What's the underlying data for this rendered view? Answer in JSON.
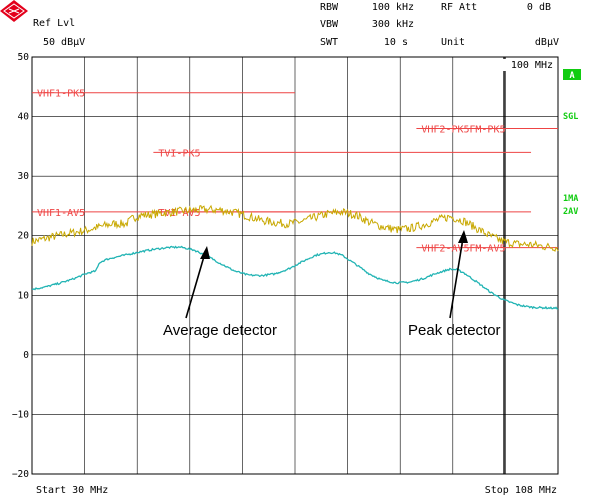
{
  "header": {
    "ref_label": "Ref Lvl",
    "ref_value": "50 dBµV",
    "rbw_label": "RBW",
    "rbw_value": "100 kHz",
    "vbw_label": "VBW",
    "vbw_value": "300 kHz",
    "swt_label": "SWT",
    "swt_value": "10 s",
    "att_label": "RF Att",
    "att_value": "0 dB",
    "unit_label": "Unit",
    "unit_value": "dBµV"
  },
  "markers": {
    "marker_freq": "100 MHz",
    "trace_a_badge": "A",
    "sgl_label": "SGL",
    "trace1_label": "1MA",
    "trace2_label": "2AV"
  },
  "footer": {
    "start_label": "Start 30 MHz",
    "stop_label": "Stop 108 MHz"
  },
  "annotations": {
    "average_label": "Average detector",
    "peak_label": "Peak detector"
  },
  "colors": {
    "logo_red": "#e3001b",
    "limit_line": "#ee4444",
    "peak_trace": "#c8a800",
    "average_trace": "#22b4b4",
    "side_label": "#11cc11",
    "grid": "#000000"
  },
  "chart_data": {
    "type": "line",
    "x_unit": "MHz",
    "y_unit": "dBµV",
    "xlim": [
      30,
      108
    ],
    "ylim": [
      -20,
      50
    ],
    "y_ticks": [
      50,
      40,
      30,
      20,
      10,
      0,
      -10,
      -20
    ],
    "x_gridlines": [
      37.8,
      45.6,
      53.4,
      61.2,
      69,
      76.8,
      84.6,
      92.4,
      100.2
    ],
    "marker_line_x": 100,
    "grid": true,
    "limit_lines": [
      {
        "name": "VHF1-PK5",
        "y": 44,
        "x": [
          30,
          69
        ]
      },
      {
        "name": "TVI-PK5",
        "y": 34,
        "x": [
          48,
          104
        ]
      },
      {
        "name": "VHF2-PK5",
        "y": 38,
        "x": [
          87,
          108
        ]
      },
      {
        "name": "FM-PK5",
        "y": 38,
        "x": [
          87,
          108
        ]
      },
      {
        "name": "VHF1-AV5",
        "y": 24,
        "x": [
          30,
          69
        ]
      },
      {
        "name": "TVI-AV5",
        "y": 24,
        "x": [
          48,
          104
        ]
      },
      {
        "name": "VHF2-AV5",
        "y": 18,
        "x": [
          87,
          108
        ]
      },
      {
        "name": "FM-AV5",
        "y": 18,
        "x": [
          87,
          108
        ]
      }
    ],
    "series": [
      {
        "name": "Peak detector",
        "noise": 0.7,
        "x": [
          30,
          33,
          36,
          38,
          40,
          42,
          44,
          45,
          46,
          48,
          50,
          52,
          54,
          56,
          58,
          60,
          62,
          64,
          66,
          68,
          70,
          72,
          74,
          76,
          78,
          80,
          82,
          84,
          86,
          88,
          90,
          92,
          94,
          96,
          98,
          100,
          102,
          104,
          106,
          108
        ],
        "values": [
          19.0,
          19.8,
          20.5,
          20.9,
          21.5,
          22.0,
          22.0,
          23.0,
          23.4,
          23.6,
          23.9,
          24.1,
          24.3,
          24.4,
          24.3,
          23.9,
          23.3,
          22.6,
          22.2,
          22.0,
          22.4,
          23.1,
          23.7,
          24.0,
          23.5,
          22.3,
          21.5,
          21.0,
          21.2,
          21.8,
          22.6,
          23.2,
          22.5,
          21.2,
          19.9,
          19.0,
          18.6,
          18.5,
          18.2,
          18.0
        ]
      },
      {
        "name": "Average detector",
        "noise": 0.15,
        "x": [
          30,
          32,
          34,
          36,
          38,
          38.5,
          38.9,
          39.5,
          40,
          41,
          42,
          44,
          46,
          48,
          50,
          52,
          54,
          56,
          58,
          60,
          62,
          64,
          66,
          68,
          70,
          72,
          74,
          75,
          76,
          78,
          80,
          82,
          84,
          86,
          88,
          90,
          92,
          93,
          94,
          96,
          98,
          100,
          102,
          104,
          106,
          108
        ],
        "values": [
          11.0,
          11.4,
          12.0,
          12.7,
          13.6,
          13.8,
          13.9,
          14.1,
          15.5,
          16.0,
          16.3,
          16.8,
          17.3,
          17.7,
          18.0,
          18.1,
          17.6,
          16.6,
          15.3,
          14.1,
          13.4,
          13.3,
          13.6,
          14.4,
          15.6,
          16.7,
          17.2,
          17.1,
          16.7,
          15.2,
          13.6,
          12.5,
          12.1,
          12.2,
          12.8,
          13.7,
          14.4,
          14.3,
          13.8,
          12.2,
          10.5,
          9.2,
          8.4,
          8.0,
          7.9,
          7.8
        ]
      }
    ]
  }
}
